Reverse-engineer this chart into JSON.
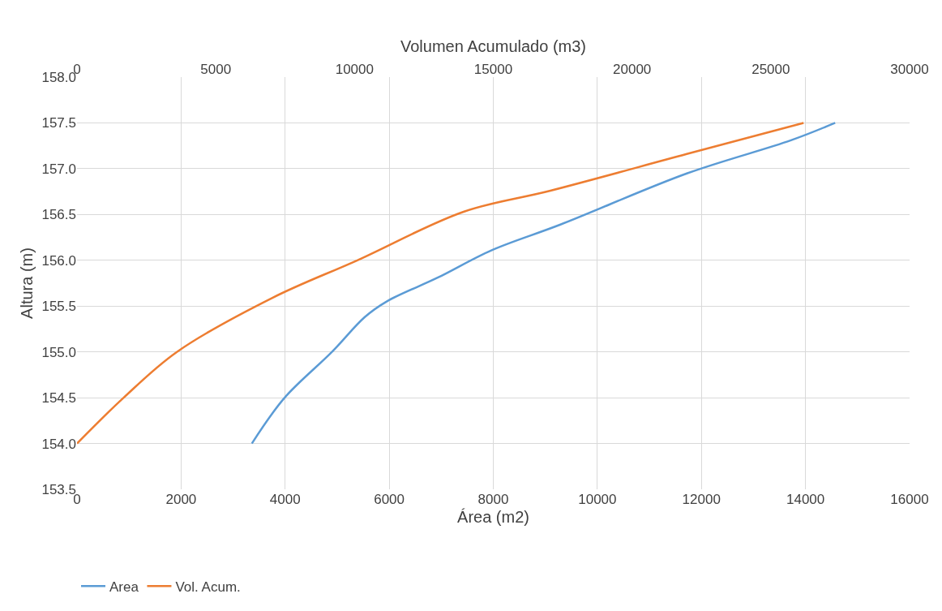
{
  "chart_data": {
    "type": "line",
    "xlabel": "Área (m2)",
    "x2label": "Volumen Acumulado (m3)",
    "ylabel": "Altura (m)",
    "xlim": [
      0,
      16000
    ],
    "xticks": [
      0,
      2000,
      4000,
      6000,
      8000,
      10000,
      12000,
      14000,
      16000
    ],
    "x2lim": [
      0,
      30000
    ],
    "x2ticks": [
      0,
      5000,
      10000,
      15000,
      20000,
      25000,
      30000
    ],
    "ylim": [
      153.5,
      158.0
    ],
    "yticks": [
      {
        "value": 153.5,
        "label": "153.5"
      },
      {
        "value": 154.0,
        "label": "154.0"
      },
      {
        "value": 154.5,
        "label": "154.5"
      },
      {
        "value": 155.0,
        "label": "155.0"
      },
      {
        "value": 155.5,
        "label": "155.5"
      },
      {
        "value": 156.0,
        "label": "156.0"
      },
      {
        "value": 156.5,
        "label": "156.5"
      },
      {
        "value": 157.0,
        "label": "157.0"
      },
      {
        "value": 157.5,
        "label": "157.5"
      },
      {
        "value": 158.0,
        "label": "158.0"
      }
    ],
    "grid": true,
    "legend": "bottom left",
    "marker": "none",
    "line_style": "solid",
    "series": [
      {
        "name": "Area",
        "color": "#5b9bd5",
        "x": [
          3360,
          3990,
          4900,
          5530,
          5950,
          6930,
          7970,
          9290,
          11730,
          13720,
          14570
        ],
        "values": [
          154.0,
          154.5,
          155.0,
          155.38,
          155.55,
          155.81,
          156.11,
          156.39,
          156.95,
          157.31,
          157.5
        ]
      },
      {
        "name": "Vol. Acum.",
        "color": "#ed7d31",
        "axis": "x2",
        "x": [
          0,
          1680,
          3600,
          7040,
          10100,
          13930,
          17060,
          21970,
          26180
        ],
        "values": [
          154.0,
          154.5,
          155.0,
          155.59,
          156.0,
          156.53,
          156.76,
          157.16,
          157.5
        ]
      }
    ]
  }
}
